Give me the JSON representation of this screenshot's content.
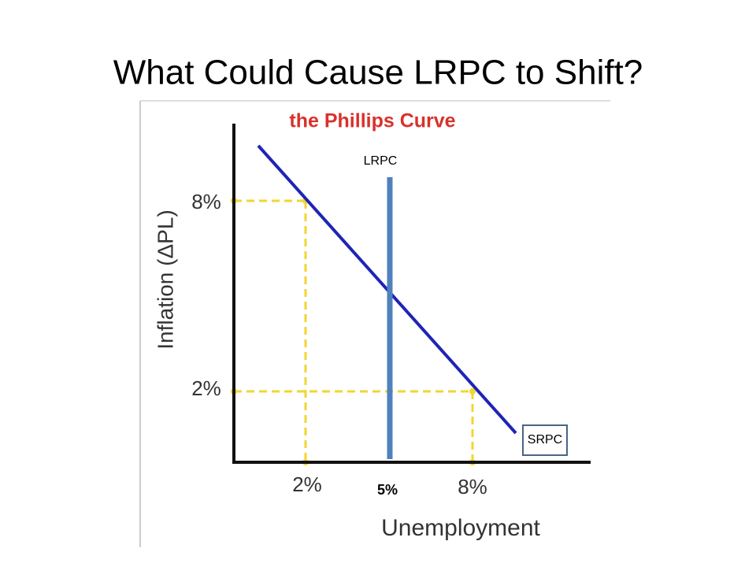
{
  "title": "What Could Cause LRPC to Shift?",
  "diagram": {
    "heading": "the Phillips Curve",
    "y_axis_label": "Inflation (ΔPL)",
    "x_axis_label": "Unemployment",
    "y_tick_labels": [
      "8%",
      "2%"
    ],
    "x_tick_labels": [
      "2%",
      "8%"
    ],
    "lrpc_label": "LRPC",
    "lrpc_value_label": "5%",
    "srpc_label": "SRPC"
  }
}
